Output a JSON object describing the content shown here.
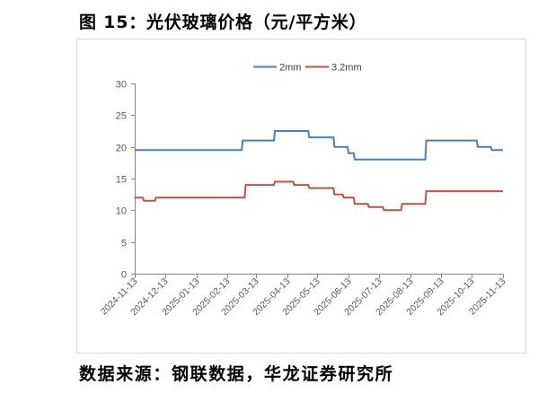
{
  "chart_data": {
    "type": "line",
    "title": "图 15：光伏玻璃价格（元/平方米）",
    "source": "数据来源：钢联数据，华龙证券研究所",
    "legend": {
      "position": "top"
    },
    "grid": false,
    "x_axis": {
      "scale": "date",
      "range": [
        "2024-11-13",
        "2025-11-13"
      ],
      "ticks": [
        "2024-11-13",
        "2024-12-13",
        "2025-01-13",
        "2025-02-13",
        "2025-03-13",
        "2025-04-13",
        "2025-05-13",
        "2025-06-13",
        "2025-07-13",
        "2025-08-13",
        "2025-09-13",
        "2025-10-13",
        "2025-11-13"
      ]
    },
    "y_axis": {
      "range": [
        0,
        30
      ],
      "ticks": [
        0,
        5,
        10,
        15,
        20,
        25,
        30
      ]
    },
    "series": [
      {
        "name": "2mm",
        "color": "#4A7EBB",
        "points": [
          [
            "2024-11-13",
            19.5
          ],
          [
            "2025-02-27",
            19.5
          ],
          [
            "2025-02-28",
            21
          ],
          [
            "2025-03-31",
            21
          ],
          [
            "2025-04-01",
            22.5
          ],
          [
            "2025-05-04",
            22.5
          ],
          [
            "2025-05-05",
            21.5
          ],
          [
            "2025-05-29",
            21.5
          ],
          [
            "2025-05-30",
            20
          ],
          [
            "2025-06-12",
            20
          ],
          [
            "2025-06-13",
            19
          ],
          [
            "2025-06-18",
            19
          ],
          [
            "2025-06-19",
            18
          ],
          [
            "2025-08-28",
            18
          ],
          [
            "2025-08-29",
            21
          ],
          [
            "2025-10-18",
            21
          ],
          [
            "2025-10-19",
            20
          ],
          [
            "2025-11-01",
            20
          ],
          [
            "2025-11-02",
            19.5
          ],
          [
            "2025-11-13",
            19.5
          ]
        ]
      },
      {
        "name": "3.2mm",
        "color": "#C0504D",
        "points": [
          [
            "2024-11-13",
            12
          ],
          [
            "2024-11-21",
            12
          ],
          [
            "2024-11-22",
            11.5
          ],
          [
            "2024-12-03",
            11.5
          ],
          [
            "2024-12-04",
            12
          ],
          [
            "2025-03-02",
            12
          ],
          [
            "2025-03-03",
            14
          ],
          [
            "2025-03-31",
            14
          ],
          [
            "2025-04-01",
            14.5
          ],
          [
            "2025-04-19",
            14.5
          ],
          [
            "2025-04-20",
            14
          ],
          [
            "2025-05-04",
            14
          ],
          [
            "2025-05-05",
            13.5
          ],
          [
            "2025-05-29",
            13.5
          ],
          [
            "2025-05-30",
            12.5
          ],
          [
            "2025-06-07",
            12.5
          ],
          [
            "2025-06-08",
            12
          ],
          [
            "2025-06-18",
            12
          ],
          [
            "2025-06-19",
            11
          ],
          [
            "2025-07-02",
            11
          ],
          [
            "2025-07-03",
            10.5
          ],
          [
            "2025-07-17",
            10.5
          ],
          [
            "2025-07-18",
            10
          ],
          [
            "2025-08-04",
            10
          ],
          [
            "2025-08-05",
            11
          ],
          [
            "2025-08-28",
            11
          ],
          [
            "2025-08-29",
            13
          ],
          [
            "2025-11-13",
            13
          ]
        ]
      }
    ]
  }
}
